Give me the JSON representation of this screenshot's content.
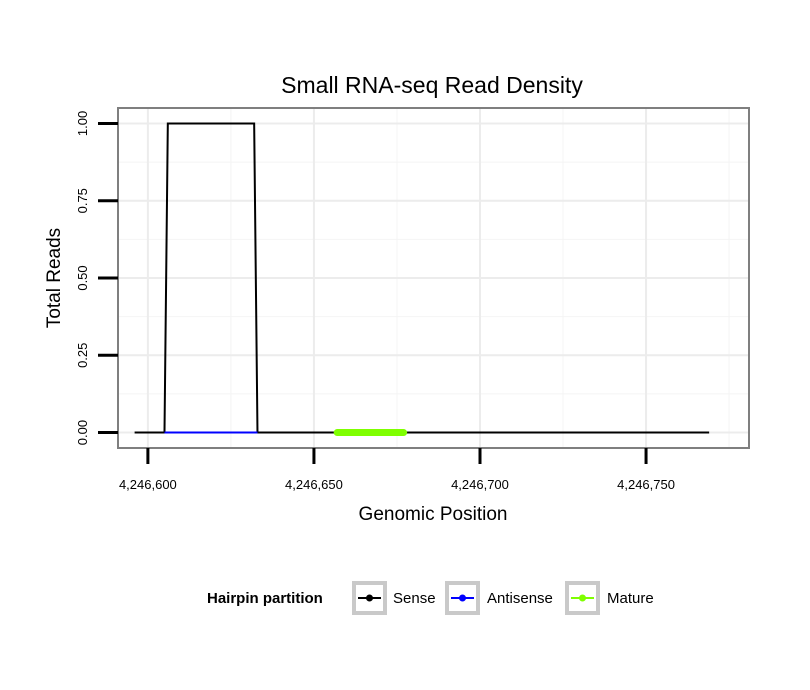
{
  "chart_data": {
    "type": "line",
    "title": "Small RNA-seq Read Density",
    "xlabel": "Genomic Position",
    "ylabel": "Total Reads",
    "xlim": [
      4246591,
      4246781
    ],
    "ylim": [
      -0.05,
      1.05
    ],
    "x_ticks": [
      4246600,
      4246650,
      4246700,
      4246750
    ],
    "x_tick_labels": [
      "4,246,600",
      "4,246,650",
      "4,246,700",
      "4,246,750"
    ],
    "y_ticks": [
      0,
      0.25,
      0.5,
      0.75,
      1
    ],
    "y_tick_labels": [
      "0.00",
      "0.25",
      "0.50",
      "0.75",
      "1.00"
    ],
    "grid": true,
    "legend_position": "bottom",
    "legend_title": "Hairpin partition",
    "series": [
      {
        "name": "Sense",
        "color": "#000000",
        "x": [
          4246596,
          4246605,
          4246606,
          4246632,
          4246633,
          4246769
        ],
        "y": [
          0,
          0,
          1,
          1,
          0,
          0
        ]
      },
      {
        "name": "Antisense",
        "color": "#0000ff",
        "x": [
          4246605,
          4246633
        ],
        "y": [
          0,
          0
        ]
      },
      {
        "name": "Mature",
        "color": "#7fff00",
        "x": [
          4246657,
          4246677
        ],
        "y": [
          0,
          0
        ]
      }
    ]
  }
}
